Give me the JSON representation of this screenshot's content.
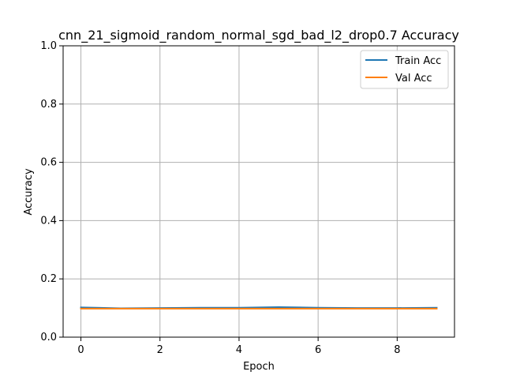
{
  "chart_data": {
    "type": "line",
    "title": "cnn_21_sigmoid_random_normal_sgd_bad_l2_drop0.7 Accuracy",
    "xlabel": "Epoch",
    "ylabel": "Accuracy",
    "x": [
      0,
      1,
      2,
      3,
      4,
      5,
      6,
      7,
      8,
      9
    ],
    "xlim": [
      -0.45,
      9.45
    ],
    "ylim": [
      0,
      1
    ],
    "x_ticks": [
      0,
      2,
      4,
      6,
      8
    ],
    "y_ticks": [
      0.0,
      0.2,
      0.4,
      0.6,
      0.8,
      1.0
    ],
    "x_tick_labels": [
      "0",
      "2",
      "4",
      "6",
      "8"
    ],
    "y_tick_labels": [
      "0.0",
      "0.2",
      "0.4",
      "0.6",
      "0.8",
      "1.0"
    ],
    "grid": true,
    "legend_position": "top-right",
    "series": [
      {
        "name": "Train Acc",
        "color": "#1f77b4",
        "values": [
          0.102,
          0.099,
          0.1,
          0.101,
          0.101,
          0.103,
          0.101,
          0.1,
          0.1,
          0.101
        ]
      },
      {
        "name": "Val Acc",
        "color": "#ff7f0e",
        "values": [
          0.098,
          0.098,
          0.098,
          0.098,
          0.098,
          0.098,
          0.098,
          0.098,
          0.098,
          0.098
        ]
      }
    ]
  }
}
